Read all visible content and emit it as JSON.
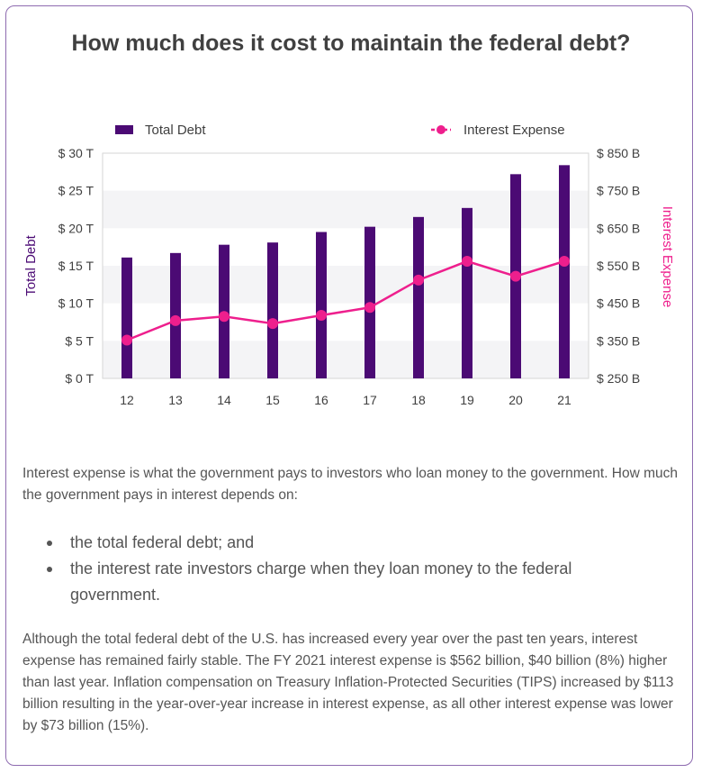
{
  "page": {
    "title": "How much does it cost to maintain the federal debt?",
    "paragraph1": "Interest expense is what the government pays to investors who loan money to the government. How much the government pays in interest depends on:",
    "bullets": [
      "the total federal debt; and",
      "the interest rate investors charge when they loan money to the federal government."
    ],
    "paragraph2": "Although the total federal debt of the U.S. has increased every year over the past ten years, interest expense has remained fairly stable. The FY 2021 interest expense is $562 billion, $40 billion (8%) higher than last year. Inflation compensation on Treasury Inflation-Protected Securities (TIPS) increased by $113 billion resulting in the year-over-year increase in interest expense, as all other interest expense was lower by $73 billion (15%)."
  },
  "colors": {
    "bar": "#4b0a74",
    "line": "#ee1f8d",
    "ylabel_left": "#4b0a74",
    "ylabel_right": "#ee1f8d",
    "band": "#f4f4f6"
  },
  "chart_data": {
    "type": "bar+line",
    "categories": [
      "12",
      "13",
      "14",
      "15",
      "16",
      "17",
      "18",
      "19",
      "20",
      "21"
    ],
    "series": [
      {
        "name": "Total Debt",
        "type": "bar",
        "axis": "left",
        "values": [
          16.1,
          16.7,
          17.8,
          18.1,
          19.5,
          20.2,
          21.5,
          22.7,
          27.2,
          28.4
        ]
      },
      {
        "name": "Interest Expense",
        "type": "line",
        "axis": "right",
        "values": [
          352,
          404,
          415,
          396,
          418,
          439,
          512,
          562,
          522,
          562
        ]
      }
    ],
    "ylabel_left": "Total Debt",
    "ylabel_right": "Interest Expense",
    "ylim_left": [
      0,
      30
    ],
    "ylim_right": [
      250,
      850
    ],
    "yticks_left": [
      "$ 0 T",
      "$ 5 T",
      "$ 10 T",
      "$ 15 T",
      "$ 20 T",
      "$ 25 T",
      "$ 30 T"
    ],
    "yticks_right": [
      "$ 250 B",
      "$ 350 B",
      "$ 450 B",
      "$ 550 B",
      "$ 650 B",
      "$ 750 B",
      "$ 850 B"
    ],
    "legend": [
      "Total Debt",
      "Interest Expense"
    ],
    "legend_position": "top",
    "grid": "alternating bands"
  }
}
